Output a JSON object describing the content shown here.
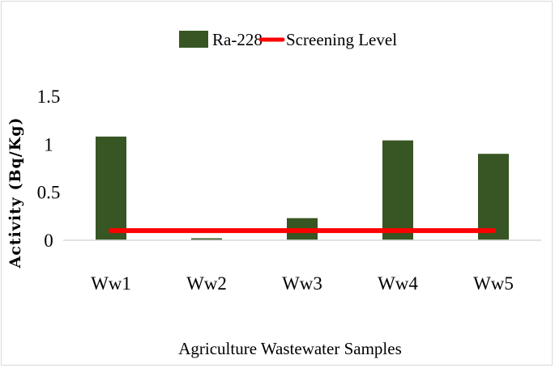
{
  "chart_data": {
    "type": "bar",
    "categories": [
      "Ww1",
      "Ww2",
      "Ww3",
      "Ww4",
      "Ww5"
    ],
    "series": [
      {
        "name": "Ra-228",
        "type": "bar",
        "color": "#375623",
        "values": [
          1.08,
          0.02,
          0.23,
          1.04,
          0.9
        ]
      },
      {
        "name": "Screening Level",
        "type": "line",
        "color": "#ff0000",
        "values": [
          0.1,
          0.1,
          0.1,
          0.1,
          0.1
        ]
      }
    ],
    "title": "",
    "xlabel": "Agriculture Wastewater Samples",
    "ylabel": "Activity (Bq/Kg)",
    "ylim": [
      0,
      1.5
    ],
    "yticks": [
      "0",
      "0.5",
      "1",
      "1.5"
    ],
    "grid": false,
    "legend_position": "top"
  }
}
